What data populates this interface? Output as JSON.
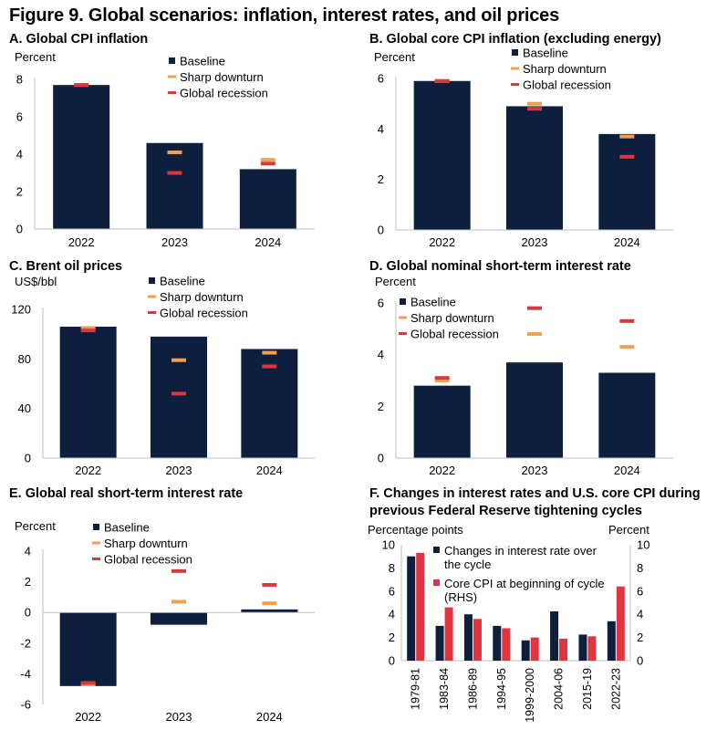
{
  "figure_title": "Figure 9. Global scenarios: inflation, interest rates, and oil prices",
  "colors": {
    "baseline": "#0e1f3d",
    "downturn": "#f0a050",
    "recession": "#d8393c",
    "rate_change": "#0e1f3d",
    "core_cpi": "#e03440"
  },
  "chart_data": [
    {
      "id": "A",
      "type": "bar",
      "title": "A. Global CPI inflation",
      "ylabel": "Percent",
      "categories": [
        "2022",
        "2023",
        "2024"
      ],
      "ylim": [
        0,
        8
      ],
      "yticks": [
        0,
        2,
        4,
        6,
        8
      ],
      "series": [
        {
          "name": "Baseline",
          "kind": "bar",
          "values": [
            7.7,
            4.6,
            3.2
          ]
        },
        {
          "name": "Sharp downturn",
          "kind": "marker",
          "values": [
            7.7,
            4.1,
            3.7
          ]
        },
        {
          "name": "Global recession",
          "kind": "marker",
          "values": [
            7.7,
            3.0,
            3.5
          ]
        }
      ]
    },
    {
      "id": "B",
      "type": "bar",
      "title": "B. Global core CPI inflation (excluding energy)",
      "ylabel": "Percent",
      "categories": [
        "2022",
        "2023",
        "2024"
      ],
      "ylim": [
        0,
        6
      ],
      "yticks": [
        0,
        2,
        4,
        6
      ],
      "series": [
        {
          "name": "Baseline",
          "kind": "bar",
          "values": [
            5.9,
            4.9,
            3.8
          ]
        },
        {
          "name": "Sharp downturn",
          "kind": "marker",
          "values": [
            5.9,
            5.0,
            3.7
          ]
        },
        {
          "name": "Global recession",
          "kind": "marker",
          "values": [
            5.9,
            4.8,
            2.9
          ]
        }
      ]
    },
    {
      "id": "C",
      "type": "bar",
      "title": "C. Brent oil prices",
      "ylabel": "US$/bbl",
      "categories": [
        "2022",
        "2023",
        "2024"
      ],
      "ylim": [
        0,
        120
      ],
      "yticks": [
        0,
        40,
        80,
        120
      ],
      "series": [
        {
          "name": "Baseline",
          "kind": "bar",
          "values": [
            106,
            98,
            88
          ]
        },
        {
          "name": "Sharp downturn",
          "kind": "marker",
          "values": [
            105,
            79,
            85
          ]
        },
        {
          "name": "Global recession",
          "kind": "marker",
          "values": [
            103,
            52,
            74
          ]
        }
      ]
    },
    {
      "id": "D",
      "type": "bar",
      "title": "D. Global nominal short-term interest rate",
      "ylabel": "Percent",
      "categories": [
        "2022",
        "2023",
        "2024"
      ],
      "ylim": [
        0,
        6
      ],
      "yticks": [
        0,
        2,
        4,
        6
      ],
      "series": [
        {
          "name": "Baseline",
          "kind": "bar",
          "values": [
            2.8,
            3.7,
            3.3
          ]
        },
        {
          "name": "Sharp downturn",
          "kind": "marker",
          "values": [
            3.0,
            4.8,
            4.3
          ]
        },
        {
          "name": "Global recession",
          "kind": "marker",
          "values": [
            3.1,
            5.8,
            5.3
          ]
        }
      ]
    },
    {
      "id": "E",
      "type": "bar",
      "title": "E. Global real short-term interest rate",
      "ylabel": "Percent",
      "categories": [
        "2022",
        "2023",
        "2024"
      ],
      "ylim": [
        -6,
        4
      ],
      "yticks": [
        -6,
        -4,
        -2,
        0,
        2,
        4
      ],
      "series": [
        {
          "name": "Baseline",
          "kind": "bar",
          "values": [
            -4.8,
            -0.8,
            0.2
          ]
        },
        {
          "name": "Sharp downturn",
          "kind": "marker",
          "values": [
            -4.7,
            0.7,
            0.6
          ]
        },
        {
          "name": "Global recession",
          "kind": "marker",
          "values": [
            -4.6,
            2.7,
            1.8
          ]
        }
      ]
    },
    {
      "id": "F",
      "type": "bar",
      "title_lines": [
        "F. Changes in interest rates and U.S. core CPI during",
        "previous Federal Reserve tightening cycles"
      ],
      "ylabel": "Percentage points",
      "ylabel_right": "Percent",
      "categories": [
        "1979-81",
        "1983-84",
        "1986-89",
        "1994-95",
        "1999-2000",
        "2004-06",
        "2015-19",
        "2022-23"
      ],
      "ylim": [
        0,
        10
      ],
      "ylim_right": [
        0,
        10
      ],
      "yticks": [
        0,
        2,
        4,
        6,
        8,
        10
      ],
      "series": [
        {
          "name": "Changes in interest rate over the cycle",
          "name_lines": [
            "Changes in interest rate over",
            "the cycle"
          ],
          "axis": "left",
          "values": [
            9.0,
            3.0,
            4.0,
            3.0,
            1.75,
            4.25,
            2.25,
            3.4
          ]
        },
        {
          "name": "Core CPI at beginning of cycle (RHS)",
          "name_lines": [
            "Core CPI at beginning of cycle",
            "(RHS)"
          ],
          "axis": "right",
          "values": [
            9.3,
            4.6,
            3.6,
            2.8,
            2.0,
            1.9,
            2.1,
            6.4
          ]
        }
      ]
    }
  ]
}
